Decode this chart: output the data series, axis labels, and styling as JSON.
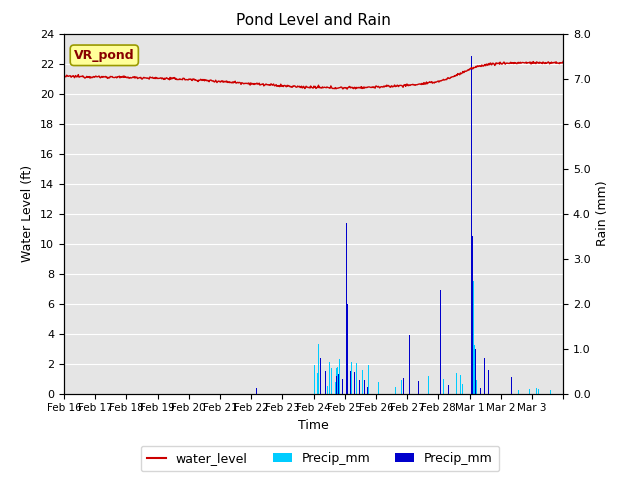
{
  "title": "Pond Level and Rain",
  "xlabel": "Time",
  "ylabel_left": "Water Level (ft)",
  "ylabel_right": "Rain (mm)",
  "ylim_left": [
    0,
    24
  ],
  "ylim_right": [
    0,
    8.0
  ],
  "yticks_left": [
    0,
    2,
    4,
    6,
    8,
    10,
    12,
    14,
    16,
    18,
    20,
    22,
    24
  ],
  "yticks_right": [
    0.0,
    1.0,
    2.0,
    3.0,
    4.0,
    5.0,
    6.0,
    7.0,
    8.0
  ],
  "ytick_right_labels": [
    "0.0",
    "1.0",
    "2.0",
    "3.0",
    "4.0",
    "5.0",
    "6.0",
    "7.0",
    "8.0"
  ],
  "background_color": "#e5e5e5",
  "water_level_color": "#cc0000",
  "precip_cyan_color": "#00ccff",
  "precip_blue_color": "#0000cc",
  "annotation_text": "VR_pond",
  "annotation_facecolor": "#ffff99",
  "annotation_edgecolor": "#999900",
  "annotation_textcolor": "#880000",
  "tick_labels": [
    "Feb 16",
    "Feb 17",
    "Feb 18",
    "Feb 19",
    "Feb 20",
    "Feb 21",
    "Feb 22",
    "Feb 23",
    "Feb 24",
    "Feb 25",
    "Feb 26",
    "Feb 27",
    "Feb 28",
    "Mar 1",
    "Mar 2",
    "Mar 3",
    ""
  ],
  "n_days": 16
}
